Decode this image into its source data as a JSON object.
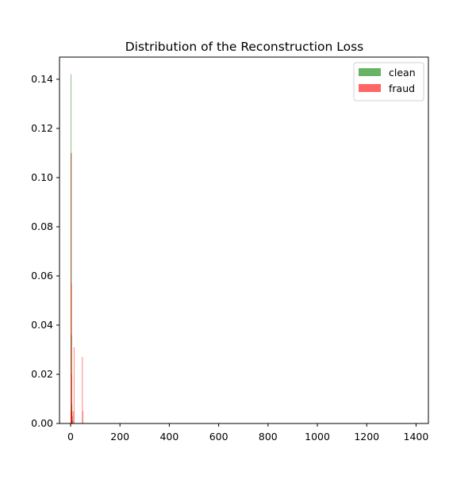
{
  "chart_data": {
    "type": "histogram",
    "title": "Distribution of the Reconstruction Loss",
    "xlabel": "",
    "ylabel": "",
    "xlim": [
      -45,
      1450
    ],
    "ylim": [
      0,
      0.149
    ],
    "x_ticks": [
      0,
      200,
      400,
      600,
      800,
      1000,
      1200,
      1400
    ],
    "y_ticks": [
      0.0,
      0.02,
      0.04,
      0.06,
      0.08,
      0.1,
      0.12,
      0.14
    ],
    "y_tick_labels": [
      "0.00",
      "0.02",
      "0.04",
      "0.06",
      "0.08",
      "0.10",
      "0.12",
      "0.14"
    ],
    "grid": false,
    "legend": {
      "position": "top-right",
      "entries": [
        {
          "name": "clean",
          "color": "#008000",
          "alpha": 0.6
        },
        {
          "name": "fraud",
          "color": "#ff0000",
          "alpha": 0.6
        }
      ]
    },
    "series": [
      {
        "name": "clean",
        "color": "#008000",
        "alpha": 0.6,
        "bins": [
          {
            "x0": 0.0,
            "x1": 1.4,
            "density": 0.142
          },
          {
            "x0": 1.4,
            "x1": 2.8,
            "density": 0.11
          },
          {
            "x0": 2.8,
            "x1": 4.2,
            "density": 0.036
          },
          {
            "x0": 4.2,
            "x1": 5.6,
            "density": 0.008
          },
          {
            "x0": 5.6,
            "x1": 7.0,
            "density": 0.003
          },
          {
            "x0": 7.0,
            "x1": 8.4,
            "density": 0.001
          }
        ]
      },
      {
        "name": "fraud",
        "color": "#ff0000",
        "alpha": 0.6,
        "bins": [
          {
            "x0": 0.0,
            "x1": 1.0,
            "density": 0.005
          },
          {
            "x0": 1.0,
            "x1": 2.0,
            "density": 0.11
          },
          {
            "x0": 2.0,
            "x1": 3.0,
            "density": 0.057
          },
          {
            "x0": 3.0,
            "x1": 4.0,
            "density": 0.02
          },
          {
            "x0": 4.0,
            "x1": 5.0,
            "density": 0.005
          },
          {
            "x0": 9.0,
            "x1": 10.2,
            "density": 0.005
          },
          {
            "x0": 12.6,
            "x1": 13.8,
            "density": 0.031
          },
          {
            "x0": 46.5,
            "x1": 47.7,
            "density": 0.027
          },
          {
            "x0": 48.0,
            "x1": 49.2,
            "density": 0.005
          }
        ]
      }
    ]
  }
}
